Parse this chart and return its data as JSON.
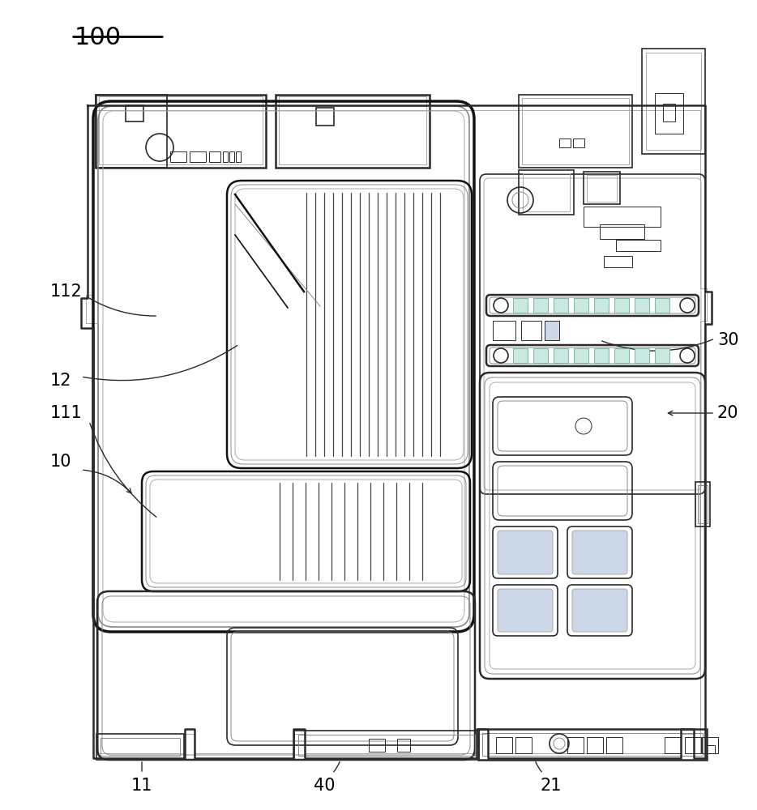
{
  "bg_color": "#ffffff",
  "lc": "#2a2a2a",
  "gray1": "#888888",
  "gray2": "#aaaaaa",
  "gray3": "#cccccc",
  "teal": "#7ab8a8",
  "teal_light": "#c8e8e0",
  "blue_light": "#ccd8e8",
  "figsize": [
    9.34,
    10.0
  ],
  "dpi": 100
}
